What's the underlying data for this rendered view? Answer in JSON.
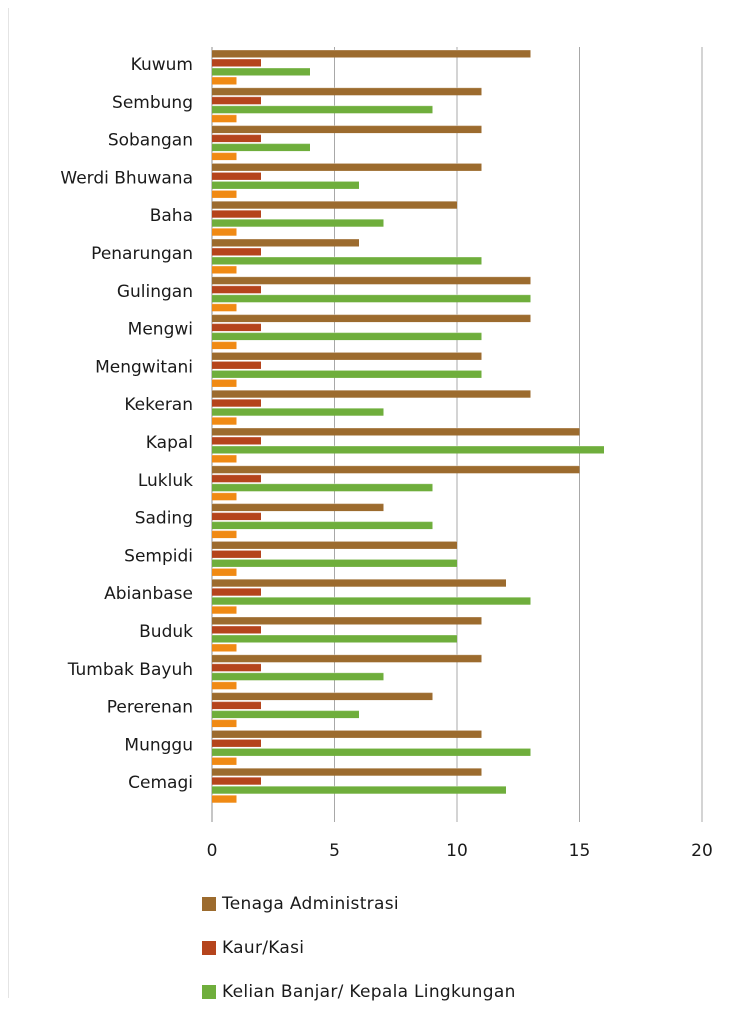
{
  "chart_data": {
    "type": "bar",
    "orientation": "horizontal",
    "categories": [
      "Kuwum",
      "Sembung",
      "Sobangan",
      "Werdi Bhuwana",
      "Baha",
      "Penarungan",
      "Gulingan",
      "Mengwi",
      "Mengwitani",
      "Kekeran",
      "Kapal",
      "Lukluk",
      "Sading",
      "Sempidi",
      "Abianbase",
      "Buduk",
      "Tumbak Bayuh",
      "Pererenan",
      "Munggu",
      "Cemagi"
    ],
    "series": [
      {
        "name": "Tenaga Administrasi",
        "color": "#9c6b2e",
        "values": [
          13,
          11,
          11,
          11,
          10,
          6,
          13,
          13,
          11,
          13,
          15,
          15,
          7,
          10,
          12,
          11,
          11,
          9,
          11,
          11
        ]
      },
      {
        "name": "Kaur/Kasi",
        "color": "#b5441c",
        "values": [
          2,
          2,
          2,
          2,
          2,
          2,
          2,
          2,
          2,
          2,
          2,
          2,
          2,
          2,
          2,
          2,
          2,
          2,
          2,
          2
        ]
      },
      {
        "name": "Kelian Banjar/ Kepala Lingkungan",
        "color": "#6fae3c",
        "values": [
          4,
          9,
          4,
          6,
          7,
          11,
          13,
          11,
          11,
          7,
          16,
          9,
          9,
          10,
          13,
          10,
          7,
          6,
          13,
          12
        ]
      },
      {
        "name": "",
        "color": "#f08a14",
        "values": [
          1,
          1,
          1,
          1,
          1,
          1,
          1,
          1,
          1,
          1,
          1,
          1,
          1,
          1,
          1,
          1,
          1,
          1,
          1,
          1
        ]
      }
    ],
    "xlim": [
      0,
      20
    ],
    "x_ticks": [
      "0",
      "5",
      "10",
      "15",
      "20"
    ],
    "grid": true,
    "legend_position": "bottom"
  }
}
